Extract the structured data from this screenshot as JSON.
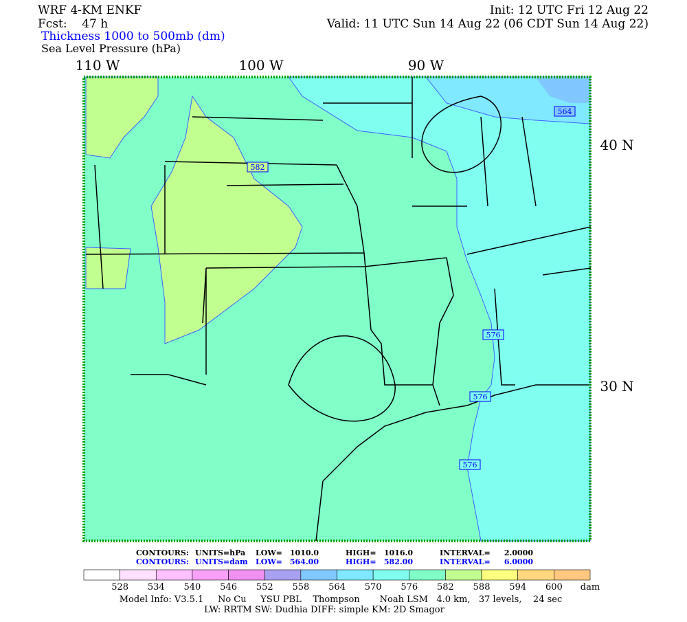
{
  "header": {
    "model": "WRF 4-KM ENKF",
    "fcst": "Fcst:    47 h",
    "init": "Init: 12 UTC Fri 12 Aug 22",
    "valid": "Valid: 11 UTC Sun 14 Aug 22 (06 CDT Sun 14 Aug 22)",
    "field1": "Thickness 1000 to 500mb (dm)",
    "field2": "Sea Level Pressure (hPa)"
  },
  "map": {
    "lon_labels": [
      "110 W",
      "100 W",
      "90 W"
    ],
    "lat_labels": [
      "40 N",
      "30 N"
    ],
    "contour_labels": [
      "582",
      "564",
      "576",
      "576",
      "576"
    ]
  },
  "footer": {
    "contours_slp": [
      "CONTOURS:",
      "UNITS=hPa",
      "LOW=",
      "1010.0",
      "HIGH=",
      "1016.0",
      "INTERVAL=",
      "2.0000"
    ],
    "contours_thk": [
      "CONTOURS:",
      "UNITS=dam",
      "LOW=",
      "564.00",
      "HIGH=",
      "582.00",
      "INTERVAL=",
      "6.0000"
    ],
    "model_info": [
      "Model Info: V3.5.1     No Cu     YSU PBL    Thompson       Noah LSM   4.0 km,   37 levels,    24 sec",
      "LW: RRTM  SW: Dudhia   DIFF: simple  KM: 2D Smagor"
    ]
  },
  "colorbar": {
    "colors": [
      "#ffffff",
      "#ffe0ff",
      "#ffc0ff",
      "#f8a0f8",
      "#f090f0",
      "#a8a0f0",
      "#80c8ff",
      "#80e8ff",
      "#80fff0",
      "#80ffc8",
      "#c0ff90",
      "#ffff80",
      "#ffd880",
      "#ffc880"
    ],
    "labels": [
      "528",
      "534",
      "540",
      "546",
      "552",
      "558",
      "564",
      "570",
      "576",
      "582",
      "588",
      "594",
      "600"
    ],
    "unit": "dam"
  }
}
